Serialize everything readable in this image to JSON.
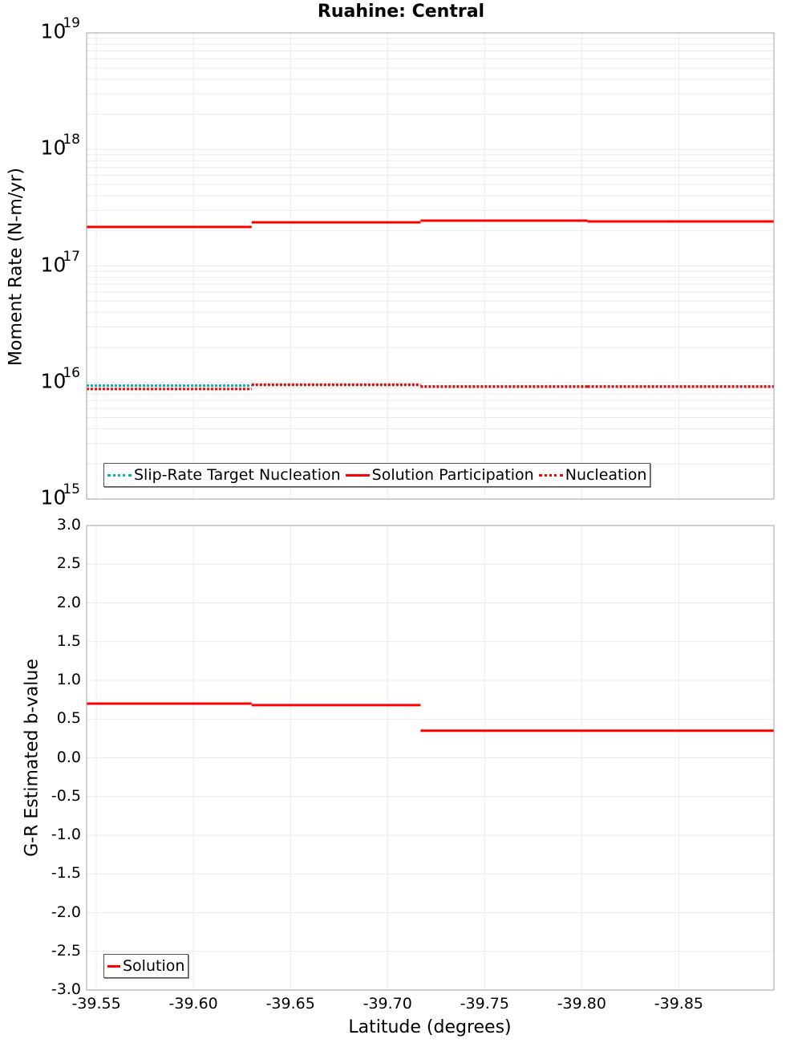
{
  "figure": {
    "title": "Ruahine: Central"
  },
  "chart_data": [
    {
      "type": "line",
      "title": "Ruahine: Central",
      "xlabel": "Latitude (degrees)",
      "ylabel": "Moment Rate (N-m/yr)",
      "yscale": "log",
      "ylim": [
        1000000000000000.0,
        1e+19
      ],
      "xlim": [
        -39.545,
        -39.899
      ],
      "grid": true,
      "legend_position": "lower-left",
      "y_tick_labels": [
        {
          "base": "10",
          "exp": "19"
        },
        {
          "base": "10",
          "exp": "18"
        },
        {
          "base": "10",
          "exp": "17"
        },
        {
          "base": "10",
          "exp": "16"
        },
        {
          "base": "10",
          "exp": "15"
        }
      ],
      "x_ticks": [
        -39.55,
        -39.6,
        -39.65,
        -39.7,
        -39.75,
        -39.8,
        -39.85
      ],
      "x_tick_labels": [
        "-39.55",
        "-39.60",
        "-39.65",
        "-39.70",
        "-39.75",
        "-39.80",
        "-39.85"
      ],
      "segment_edges": [
        -39.545,
        -39.63,
        -39.717,
        -39.803,
        -39.899
      ],
      "series": [
        {
          "name": "Slip-Rate Target Nucleation",
          "style": "dotted",
          "color": "#00b2b2",
          "values": [
            9400000000000000.0,
            9500000000000000.0,
            9300000000000000.0,
            9300000000000000.0
          ]
        },
        {
          "name": "Solution Participation",
          "style": "solid",
          "color": "#ff0000",
          "values": [
            2.16e+17,
            2.37e+17,
            2.45e+17,
            2.41e+17
          ]
        },
        {
          "name": "Nucleation",
          "style": "dotted",
          "color": "#ff0000",
          "values": [
            8800000000000000.0,
            9600000000000000.0,
            9200000000000000.0,
            9200000000000000.0
          ]
        }
      ]
    },
    {
      "type": "line",
      "title": "",
      "xlabel": "Latitude (degrees)",
      "ylabel": "G-R Estimated b-value",
      "yscale": "linear",
      "ylim": [
        -3.0,
        3.0
      ],
      "xlim": [
        -39.545,
        -39.899
      ],
      "grid": true,
      "legend_position": "lower-left",
      "y_ticks": [
        3.0,
        2.5,
        2.0,
        1.5,
        1.0,
        0.5,
        0.0,
        -0.5,
        -1.0,
        -1.5,
        -2.0,
        -2.5,
        -3.0
      ],
      "y_tick_labels": [
        "3.0",
        "2.5",
        "2.0",
        "1.5",
        "1.0",
        "0.5",
        "0.0",
        "-0.5",
        "-1.0",
        "-1.5",
        "-2.0",
        "-2.5",
        "-3.0"
      ],
      "x_ticks": [
        -39.55,
        -39.6,
        -39.65,
        -39.7,
        -39.75,
        -39.8,
        -39.85
      ],
      "x_tick_labels": [
        "-39.55",
        "-39.60",
        "-39.65",
        "-39.70",
        "-39.75",
        "-39.80",
        "-39.85"
      ],
      "segment_edges": [
        -39.545,
        -39.63,
        -39.717,
        -39.803,
        -39.899
      ],
      "series": [
        {
          "name": "Solution",
          "style": "solid",
          "color": "#ff0000",
          "values": [
            0.7,
            0.68,
            0.35,
            0.35
          ]
        }
      ]
    }
  ],
  "colors": {
    "grid": "#ebebeb",
    "axis": "#a0a0a0",
    "red": "#ff0000",
    "cyan": "#00b2b2"
  }
}
